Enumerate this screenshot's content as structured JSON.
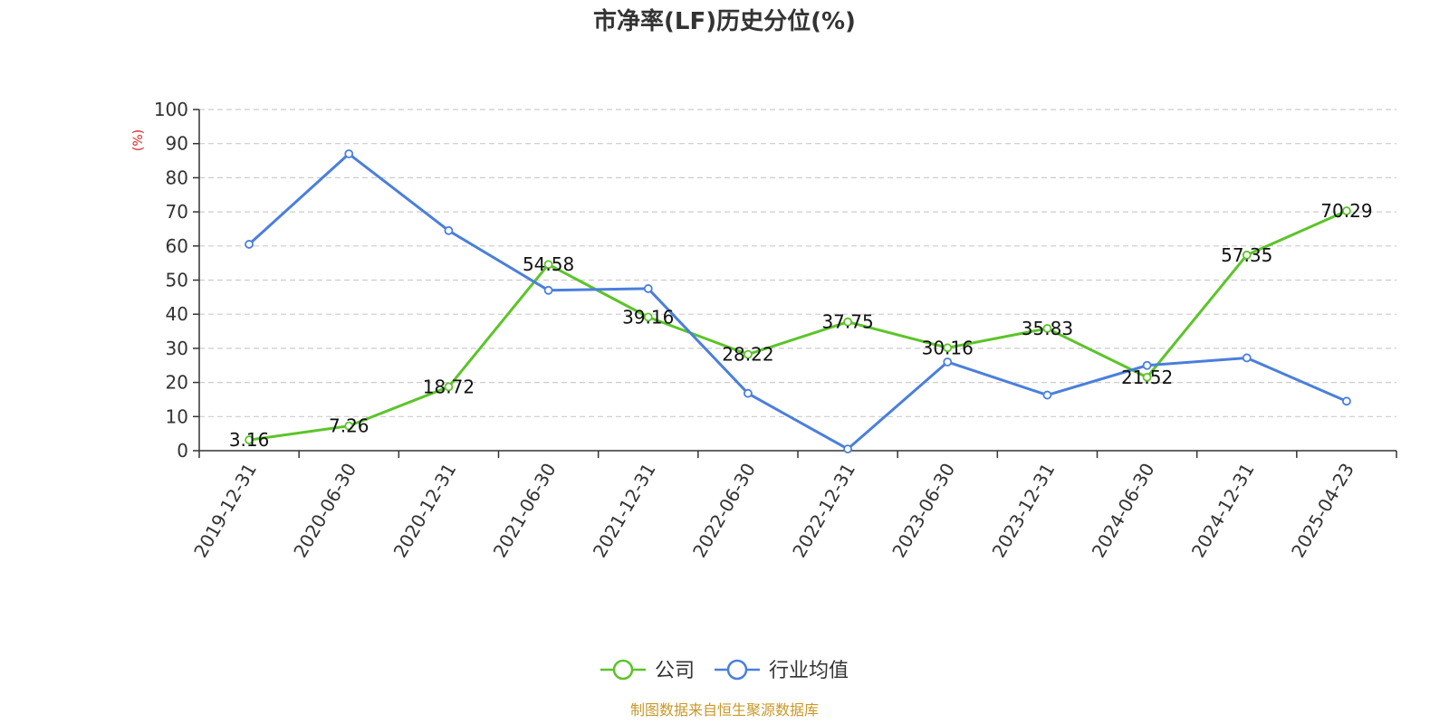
{
  "chart_data": {
    "type": "line",
    "title": "市净率(LF)历史分位(%)",
    "ylabel": "(%)",
    "ylim": [
      0,
      100
    ],
    "yticks": [
      0,
      10,
      20,
      30,
      40,
      50,
      60,
      70,
      80,
      90,
      100
    ],
    "grid": true,
    "legend_position": "bottom",
    "categories": [
      "2019-12-31",
      "2020-06-30",
      "2020-12-31",
      "2021-06-30",
      "2021-12-31",
      "2022-06-30",
      "2022-12-31",
      "2023-06-30",
      "2023-12-31",
      "2024-06-30",
      "2024-12-31",
      "2025-04-23"
    ],
    "series": [
      {
        "name": "公司",
        "color": "#5cc42a",
        "show_labels": true,
        "values": [
          3.16,
          7.26,
          18.72,
          54.58,
          39.16,
          28.22,
          37.75,
          30.16,
          35.83,
          21.52,
          57.35,
          70.29
        ]
      },
      {
        "name": "行业均值",
        "color": "#4a7fdc",
        "show_labels": false,
        "values": [
          60.5,
          87.0,
          64.5,
          47.0,
          47.5,
          16.8,
          0.5,
          26.0,
          16.3,
          25.0,
          27.2,
          14.5
        ]
      }
    ]
  },
  "ylabel_color": "#e02020",
  "source": {
    "text": "制图数据来自恒生聚源数据库",
    "color": "#c8982a"
  }
}
